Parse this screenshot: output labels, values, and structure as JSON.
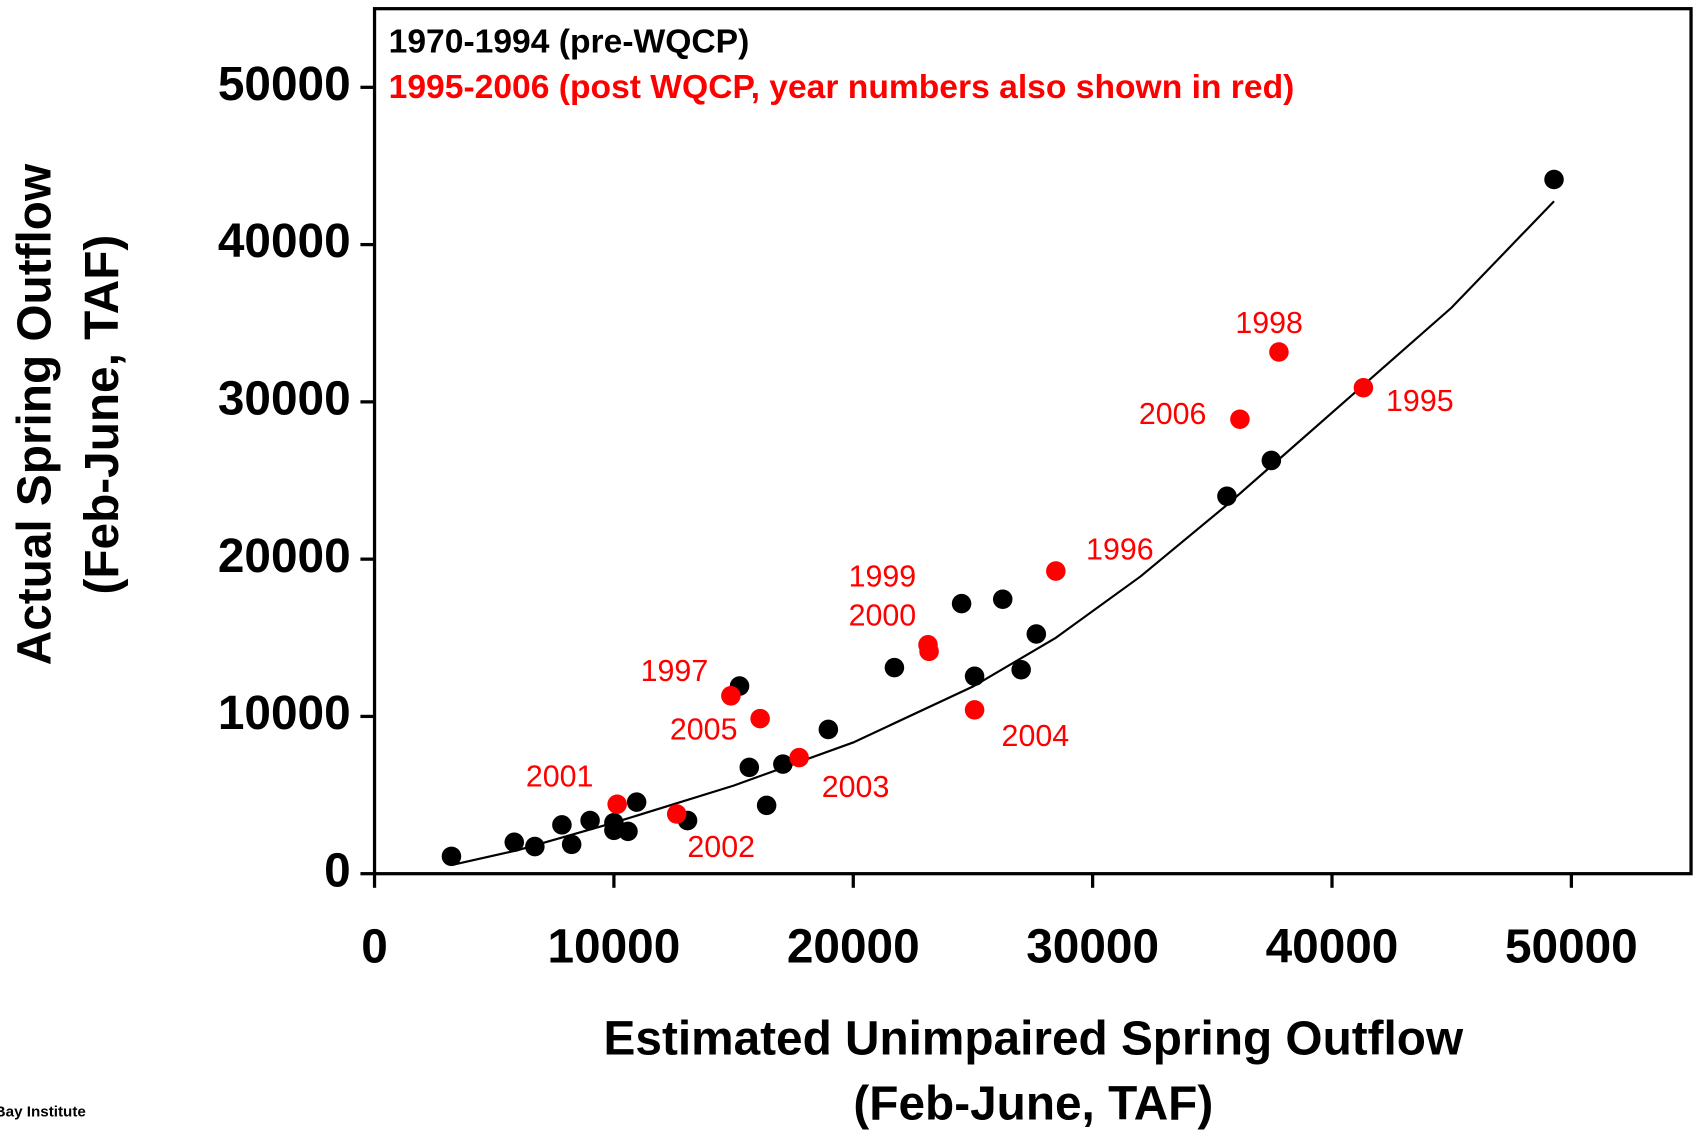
{
  "chart_data": {
    "type": "scatter",
    "x_label": [
      "Estimated Unimpaired Spring Outflow",
      "(Feb-June, TAF)"
    ],
    "y_label": [
      "Actual Spring Outflow",
      "(Feb-June, TAF)"
    ],
    "source": "Bay Institute",
    "xlim": [
      0,
      55000
    ],
    "ylim": [
      0,
      55000
    ],
    "xticks": [
      0,
      10000,
      20000,
      30000,
      40000,
      50000
    ],
    "yticks": [
      0,
      10000,
      20000,
      30000,
      40000,
      50000
    ],
    "series": [
      {
        "name": "1970-1994 (pre-WQCP)",
        "color": "#000000",
        "x": [
          3213,
          5837,
          6697,
          7828,
          8235,
          9005,
          10000,
          10000,
          10588,
          10950,
          13077,
          15249,
          15656,
          16380,
          17059,
          18959,
          21719,
          24525,
          25068,
          26244,
          27014,
          27647,
          35611,
          37466,
          49276
        ],
        "values": [
          1103,
          2000,
          1724,
          3103,
          1862,
          3379,
          3241,
          2759,
          2690,
          4552,
          3379,
          11931,
          6759,
          4345,
          6966,
          9172,
          13103,
          17172,
          12552,
          17448,
          12966,
          15241,
          24000,
          26276,
          44138
        ]
      },
      {
        "name": "1995-2006 (post WQCP, year numbers also shown in red)",
        "color": "#ff0000",
        "labels": [
          "1995",
          "1996",
          "1997",
          "1998",
          "1999",
          "2000",
          "2001",
          "2002",
          "2003",
          "2004",
          "2005",
          "2006"
        ],
        "x": [
          41312,
          28462,
          14887,
          37783,
          23122,
          23167,
          10136,
          12624,
          17738,
          25068,
          16109,
          36154
        ],
        "values": [
          30897,
          19241,
          11310,
          33172,
          14552,
          14138,
          4414,
          3793,
          7379,
          10414,
          9862,
          28897
        ]
      }
    ],
    "trendline": {
      "color": "#000000",
      "x": [
        3213,
        6000,
        10000,
        15000,
        20000,
        25000,
        28462,
        32000,
        35611,
        40000,
        45000,
        49276
      ],
      "values": [
        552,
        1500,
        3241,
        5600,
        8345,
        11900,
        15000,
        18900,
        23448,
        29310,
        36000,
        42759
      ]
    }
  }
}
